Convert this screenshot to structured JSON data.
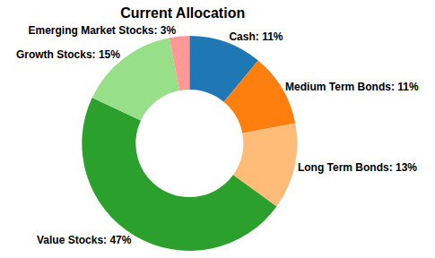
{
  "chart_data": {
    "type": "pie",
    "title": "Current Allocation",
    "categories": [
      "Cash",
      "Medium Term Bonds",
      "Long Term Bonds",
      "Value Stocks",
      "Growth Stocks",
      "Emerging Market Stocks"
    ],
    "values": [
      11,
      11,
      13,
      47,
      15,
      3
    ],
    "value_labels": [
      "Cash: 11%",
      "Medium Term Bonds: 11%",
      "Long Term Bonds: 13%",
      "Value Stocks: 47%",
      "Growth Stocks: 15%",
      "Emerging Market Stocks: 3%"
    ],
    "colors": [
      "#1f77b4",
      "#ff7f0e",
      "#ffbb78",
      "#2ca02c",
      "#98df8a",
      "#ff9896"
    ],
    "data_labels": true
  }
}
